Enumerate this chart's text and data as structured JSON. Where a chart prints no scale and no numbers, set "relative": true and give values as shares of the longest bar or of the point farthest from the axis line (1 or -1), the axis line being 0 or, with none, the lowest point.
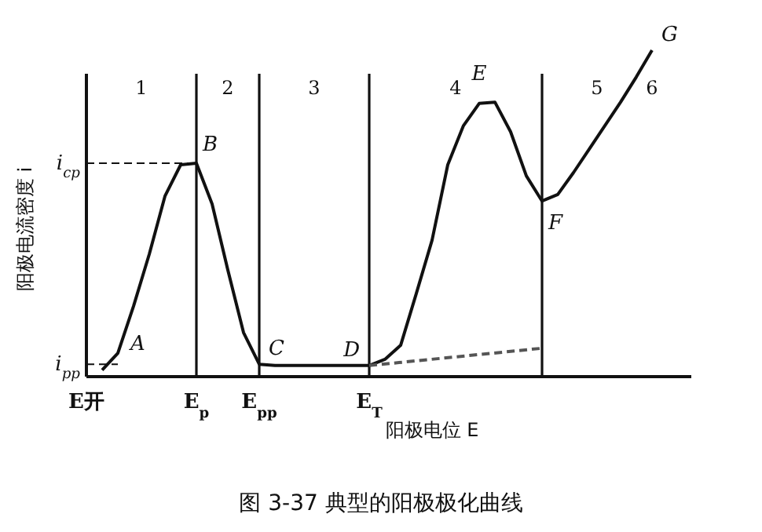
{
  "chart_data": {
    "type": "line",
    "relative": true,
    "title": "图 3-37  典型的阳极极化曲线",
    "xlabel": "阳极电位 E",
    "ylabel": "阳极电流密度 i",
    "grid": "x",
    "categories": [
      "E开",
      null,
      null,
      null,
      null,
      null,
      null,
      "E$_{p}$",
      null,
      null,
      null,
      "E$_{pp}$",
      null,
      null,
      null,
      null,
      null,
      null,
      "E$_{T}$",
      null,
      null,
      null,
      null,
      null,
      null,
      null,
      null,
      null,
      null,
      null,
      null,
      null,
      null,
      null,
      null,
      null,
      null
    ],
    "series": [
      {
        "color": "#111111",
        "line_style": "solid",
        "values": [
          null,
          0.02,
          0.072,
          0.216,
          0.375,
          0.553,
          0.649,
          0.654,
          0.529,
          0.327,
          0.135,
          0.038,
          0.034,
          0.034,
          0.034,
          0.034,
          0.034,
          0.034,
          0.034,
          0.053,
          0.096,
          0.255,
          0.418,
          0.649,
          0.769,
          0.837,
          0.841,
          0.75,
          0.615,
          0.538,
          0.558,
          0.625,
          0.697,
          0.769,
          0.841,
          0.918,
          1.0
        ]
      },
      {
        "color": "#555555",
        "line_style": "dashed",
        "values": [
          null,
          null,
          null,
          null,
          null,
          null,
          null,
          null,
          null,
          null,
          null,
          null,
          null,
          null,
          null,
          null,
          null,
          null,
          0.034,
          null,
          null,
          null,
          null,
          null,
          null,
          null,
          null,
          null,
          null,
          0.087,
          null,
          null,
          null,
          null,
          null,
          null,
          null
        ]
      }
    ],
    "ref_lines": [
      {
        "axis": "y",
        "value": 0.654,
        "label": "i$_{cp}$",
        "line_style": "dashed"
      },
      {
        "axis": "y",
        "value": 0.038,
        "label": "i$_{pp}$",
        "line_style": "dashed"
      }
    ],
    "annotations": [
      "1",
      "2",
      "3",
      "4",
      "5",
      "6",
      "A",
      "B",
      "C",
      "D",
      "E",
      "F",
      "G"
    ]
  }
}
